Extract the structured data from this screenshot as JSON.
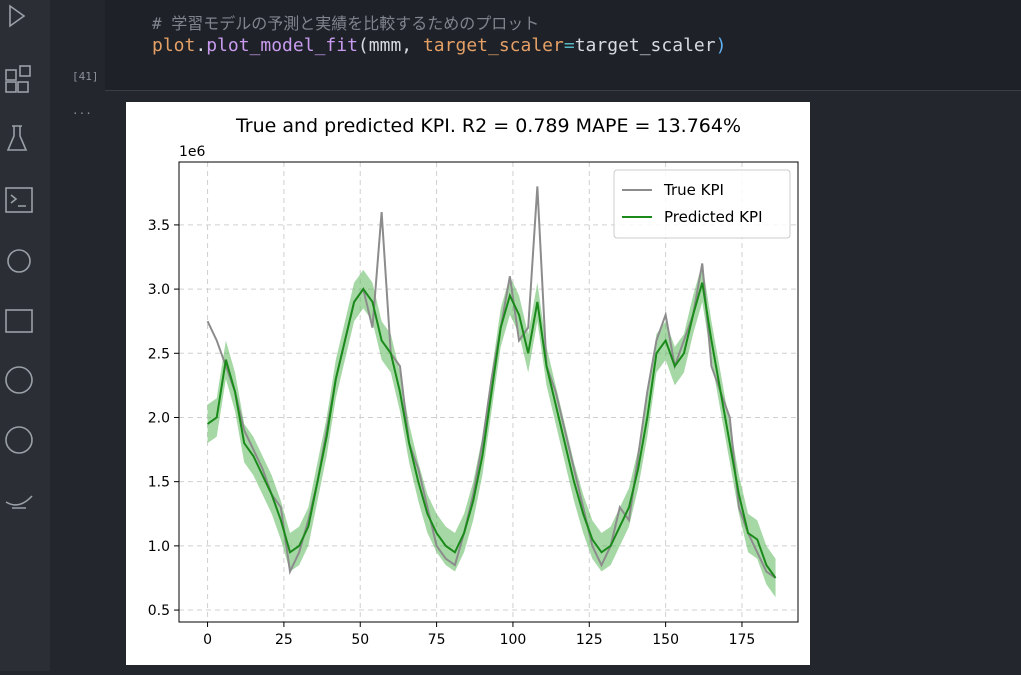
{
  "cell": {
    "comment": "# 学習モデルの予測と実績を比較するためのプロット",
    "code": [
      "plot",
      ".",
      "plot_model_fit",
      "(",
      "mmm",
      ", ",
      "target_scaler",
      "=",
      "target_scaler",
      ")"
    ],
    "execution_count": "[41]",
    "output_more": "..."
  },
  "chart_data": {
    "type": "line",
    "title": "True and predicted KPI. R2 = 0.789 MAPE = 13.764%",
    "offset_label": "1e6",
    "x": [
      0,
      3,
      6,
      9,
      12,
      15,
      18,
      21,
      24,
      27,
      30,
      33,
      36,
      39,
      42,
      45,
      48,
      51,
      54,
      57,
      60,
      63,
      66,
      69,
      72,
      75,
      78,
      81,
      84,
      87,
      90,
      93,
      96,
      99,
      102,
      105,
      108,
      111,
      114,
      117,
      120,
      123,
      126,
      129,
      132,
      135,
      138,
      141,
      144,
      147,
      150,
      153,
      156,
      159,
      162,
      165,
      168,
      171,
      174,
      177,
      180,
      183,
      186
    ],
    "series": [
      {
        "name": "True KPI",
        "color": "#8c8c8c",
        "values": [
          2.75,
          2.6,
          2.4,
          2.2,
          1.9,
          1.75,
          1.6,
          1.4,
          1.3,
          0.8,
          0.95,
          1.2,
          1.5,
          1.9,
          2.3,
          2.6,
          2.9,
          3.0,
          2.7,
          3.6,
          2.5,
          2.4,
          1.8,
          1.6,
          1.3,
          1.0,
          0.9,
          0.85,
          1.1,
          1.4,
          1.8,
          2.3,
          2.7,
          3.1,
          2.6,
          2.7,
          3.8,
          2.4,
          2.2,
          1.9,
          1.6,
          1.3,
          1.0,
          0.85,
          1.0,
          1.3,
          1.2,
          1.7,
          2.2,
          2.6,
          2.8,
          2.4,
          2.6,
          2.8,
          3.2,
          2.4,
          2.2,
          2.0,
          1.3,
          1.1,
          0.95,
          0.8,
          0.75
        ]
      },
      {
        "name": "Predicted KPI",
        "color": "#1a8a1a",
        "band_color": "#5cb85c",
        "values": [
          1.95,
          2.0,
          2.45,
          2.2,
          1.8,
          1.7,
          1.55,
          1.4,
          1.2,
          0.95,
          1.0,
          1.15,
          1.5,
          1.85,
          2.3,
          2.6,
          2.9,
          3.0,
          2.9,
          2.6,
          2.5,
          2.2,
          1.8,
          1.5,
          1.25,
          1.1,
          1.0,
          0.95,
          1.1,
          1.35,
          1.7,
          2.2,
          2.7,
          2.95,
          2.8,
          2.5,
          2.9,
          2.4,
          2.1,
          1.8,
          1.5,
          1.25,
          1.05,
          0.95,
          1.0,
          1.15,
          1.3,
          1.6,
          2.0,
          2.5,
          2.6,
          2.4,
          2.5,
          2.8,
          3.05,
          2.6,
          2.2,
          1.8,
          1.4,
          1.1,
          1.05,
          0.85,
          0.75
        ],
        "lower": [
          1.8,
          1.85,
          2.3,
          2.05,
          1.65,
          1.55,
          1.4,
          1.25,
          1.05,
          0.8,
          0.85,
          1.0,
          1.35,
          1.7,
          2.15,
          2.45,
          2.75,
          2.85,
          2.75,
          2.45,
          2.35,
          2.05,
          1.65,
          1.35,
          1.1,
          0.95,
          0.85,
          0.8,
          0.95,
          1.2,
          1.55,
          2.05,
          2.55,
          2.8,
          2.65,
          2.35,
          2.75,
          2.25,
          1.95,
          1.65,
          1.35,
          1.1,
          0.9,
          0.8,
          0.85,
          1.0,
          1.15,
          1.45,
          1.85,
          2.35,
          2.45,
          2.25,
          2.35,
          2.65,
          2.9,
          2.45,
          2.05,
          1.65,
          1.25,
          0.95,
          0.9,
          0.7,
          0.6
        ],
        "upper": [
          2.1,
          2.15,
          2.6,
          2.35,
          1.95,
          1.85,
          1.7,
          1.55,
          1.35,
          1.1,
          1.15,
          1.3,
          1.65,
          2.0,
          2.45,
          2.75,
          3.05,
          3.15,
          3.05,
          2.75,
          2.65,
          2.35,
          1.95,
          1.65,
          1.4,
          1.25,
          1.15,
          1.1,
          1.25,
          1.5,
          1.85,
          2.35,
          2.85,
          3.1,
          2.95,
          2.65,
          3.05,
          2.55,
          2.25,
          1.95,
          1.65,
          1.4,
          1.2,
          1.1,
          1.15,
          1.3,
          1.45,
          1.75,
          2.15,
          2.65,
          2.75,
          2.55,
          2.65,
          2.95,
          3.2,
          2.75,
          2.35,
          1.95,
          1.55,
          1.25,
          1.2,
          1.0,
          0.9
        ]
      }
    ],
    "xlim": [
      -9.35,
      193.35
    ],
    "ylim": [
      0.407,
      3.99
    ],
    "xticks": [
      0,
      25,
      50,
      75,
      100,
      125,
      150,
      175
    ],
    "yticks": [
      0.5,
      {
        "value": 1,
        "label": "1.0"
      },
      1.5,
      {
        "value": 2,
        "label": "2.0"
      },
      2.5,
      {
        "value": 3,
        "label": "3.0"
      },
      3.5
    ],
    "grid": true,
    "legend": "upper right"
  }
}
